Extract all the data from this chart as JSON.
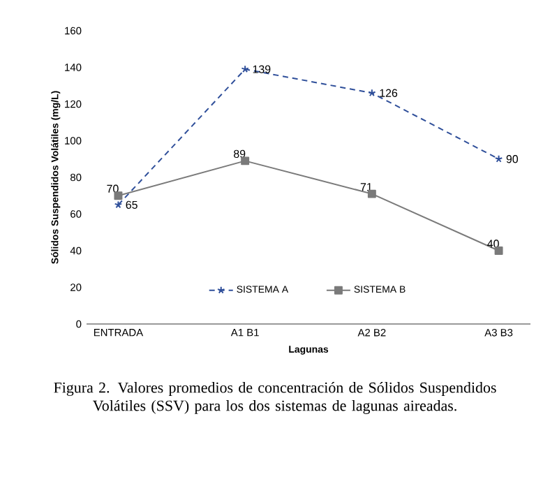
{
  "chart_data": {
    "type": "line",
    "ylabel": "Sólidos Suspendidos Volátiles (mg/L)",
    "xlabel": "Lagunas",
    "categories": [
      "ENTRADA",
      "A1  B1",
      "A2  B2",
      "A3  B3"
    ],
    "series": [
      {
        "name": "SISTEMA A",
        "color": "#2f4f9a",
        "values": [
          65,
          139,
          126,
          90
        ],
        "marker": "cross",
        "line_style": "dashed"
      },
      {
        "name": "SISTEMA B",
        "color": "#7a7a7a",
        "values": [
          70,
          89,
          71,
          40
        ],
        "marker": "square",
        "line_style": "solid"
      }
    ],
    "ylim": [
      0,
      160
    ],
    "yticks": [
      0,
      20,
      40,
      60,
      80,
      100,
      120,
      140,
      160
    ],
    "data_labels": true,
    "legend": "bottom",
    "grid": false,
    "annotations": [
      "Figura 2. Valores promedios de concentración de Sólidos Suspendidos Volátiles (SSV) para los dos sistemas de lagunas aireadas."
    ]
  }
}
